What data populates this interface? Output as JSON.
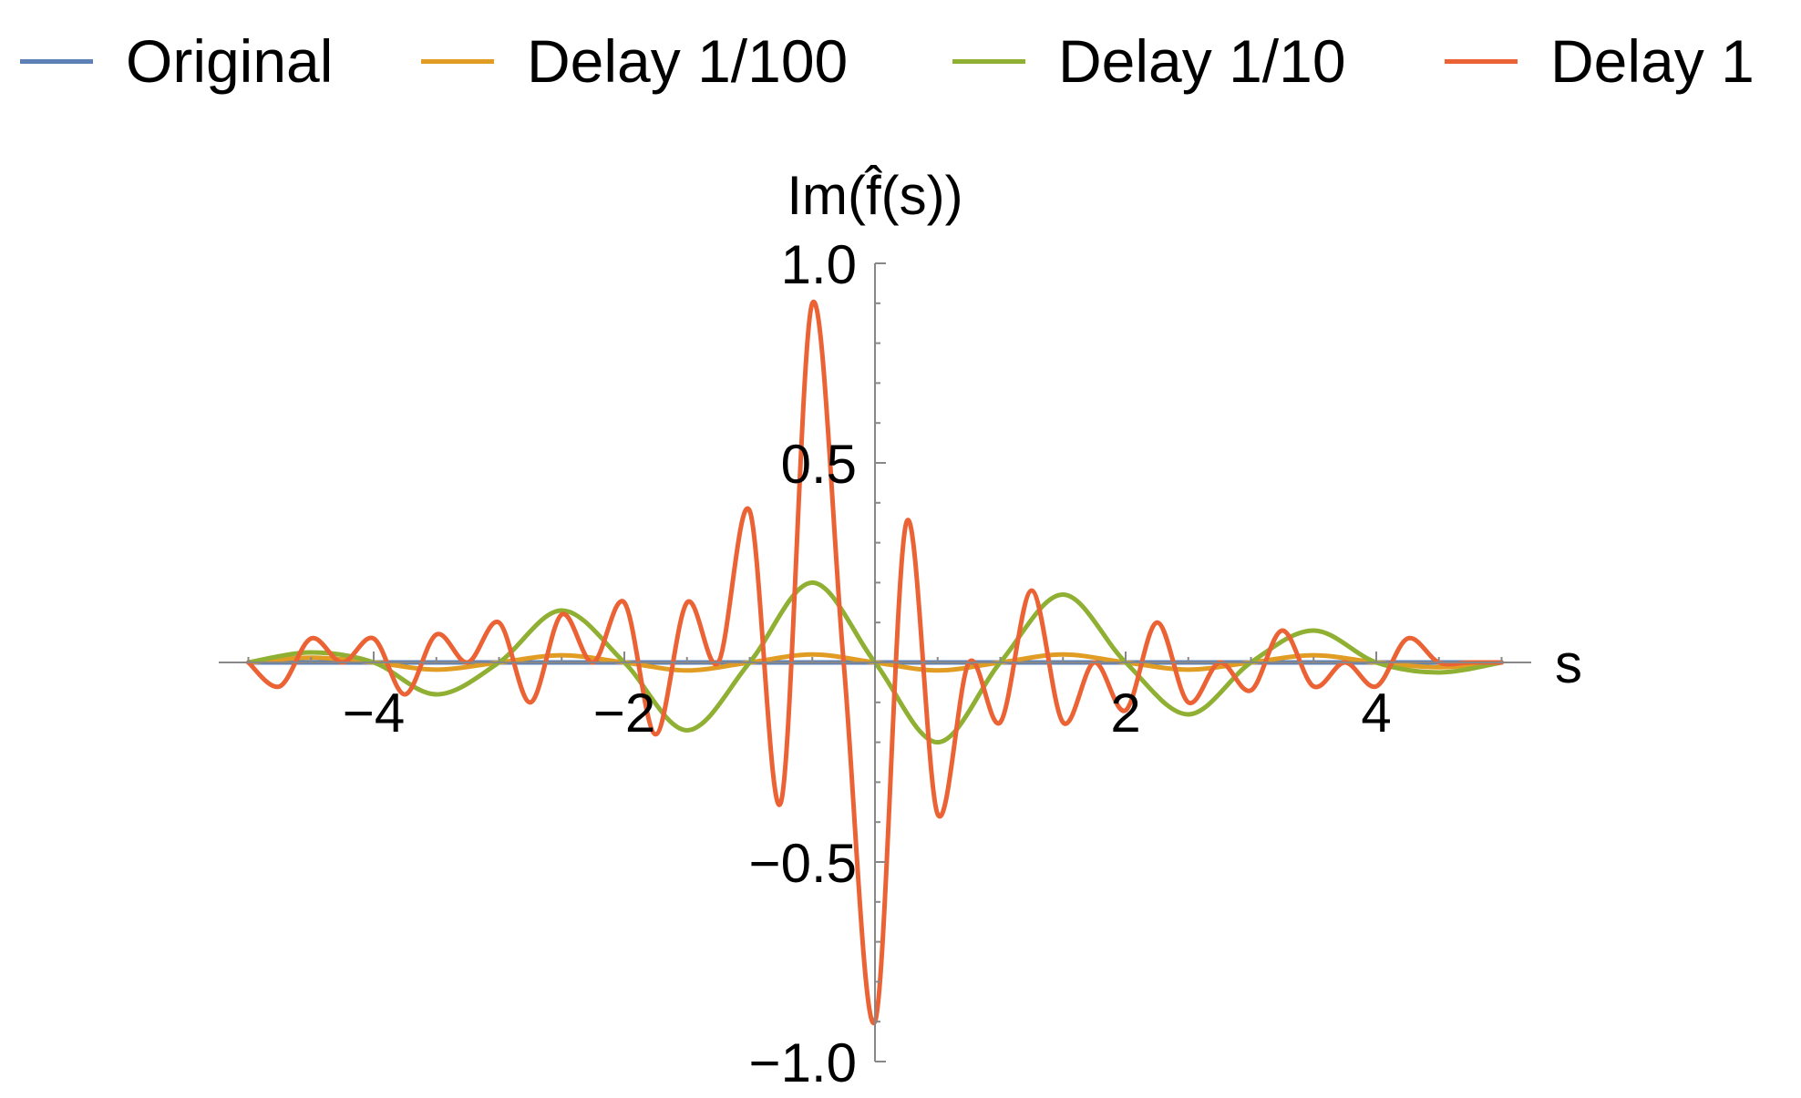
{
  "chart_data": {
    "type": "line",
    "xlabel": "s",
    "ylabel": "Im(f̂(s))",
    "xlim": [
      -5,
      5
    ],
    "ylim": [
      -1.0,
      1.0
    ],
    "x_ticks": [
      -4,
      -2,
      2,
      4
    ],
    "x_tick_labels": [
      "−4",
      "−2",
      "2",
      "4"
    ],
    "y_ticks": [
      1.0,
      0.5,
      -0.5,
      -1.0
    ],
    "y_tick_labels": [
      "1.0",
      "0.5",
      "−0.5",
      "−1.0"
    ],
    "grid": false,
    "legend_position": "top",
    "series": [
      {
        "name": "Original",
        "color": "#5E81B5",
        "x": [
          -5,
          -4,
          -3,
          -2,
          -1,
          0,
          1,
          2,
          3,
          4,
          5
        ],
        "y": [
          0,
          0,
          0,
          0,
          0,
          0,
          0,
          0,
          0,
          0,
          0
        ]
      },
      {
        "name": "Delay 1/100",
        "color": "#E19C24",
        "x": [
          -5,
          -4.5,
          -4,
          -3.5,
          -3,
          -2.5,
          -2,
          -1.5,
          -1,
          -0.5,
          0,
          0.5,
          1,
          1.5,
          2,
          2.5,
          3,
          3.5,
          4,
          4.5,
          5
        ],
        "y": [
          0,
          0.012,
          0,
          -0.018,
          0,
          0.018,
          0,
          -0.02,
          0,
          0.02,
          0,
          -0.02,
          0,
          0.02,
          0,
          -0.018,
          0,
          0.018,
          0,
          -0.012,
          0
        ]
      },
      {
        "name": "Delay 1/10",
        "color": "#8FB032",
        "x": [
          -5,
          -4.5,
          -4,
          -3.5,
          -3,
          -2.5,
          -2,
          -1.5,
          -1,
          -0.5,
          0,
          0.5,
          1,
          1.5,
          2,
          2.5,
          3,
          3.5,
          4,
          4.5,
          5
        ],
        "y": [
          0,
          0.025,
          0,
          -0.08,
          0,
          0.13,
          0,
          -0.17,
          0,
          0.2,
          0,
          -0.2,
          0,
          0.17,
          0,
          -0.13,
          0,
          0.08,
          0,
          -0.025,
          0
        ]
      },
      {
        "name": "Delay 1",
        "color": "#EB6235",
        "x": [
          -5,
          -4.75,
          -4.5,
          -4.25,
          -4,
          -3.75,
          -3.5,
          -3.25,
          -3,
          -2.75,
          -2.5,
          -2.25,
          -2,
          -1.75,
          -1.5,
          -1.25,
          -1,
          -0.75,
          -0.5,
          -0.25,
          0,
          0.25,
          0.5,
          0.75,
          1,
          1.25,
          1.5,
          1.75,
          2,
          2.25,
          2.5,
          2.75,
          3,
          3.25,
          3.5,
          3.75,
          4,
          4.25,
          4.5,
          4.75,
          5
        ],
        "y": [
          0,
          -0.06,
          0.06,
          0,
          0.06,
          -0.08,
          0.07,
          0,
          0.1,
          -0.1,
          0.12,
          0,
          0.15,
          -0.18,
          0.15,
          0,
          0.38,
          -0.35,
          0.9,
          0,
          -0.9,
          0.35,
          -0.38,
          0,
          -0.15,
          0.18,
          -0.15,
          0,
          -0.12,
          0.1,
          -0.1,
          0,
          -0.07,
          0.08,
          -0.06,
          0,
          -0.06,
          0.06,
          0,
          0,
          0
        ]
      }
    ]
  }
}
